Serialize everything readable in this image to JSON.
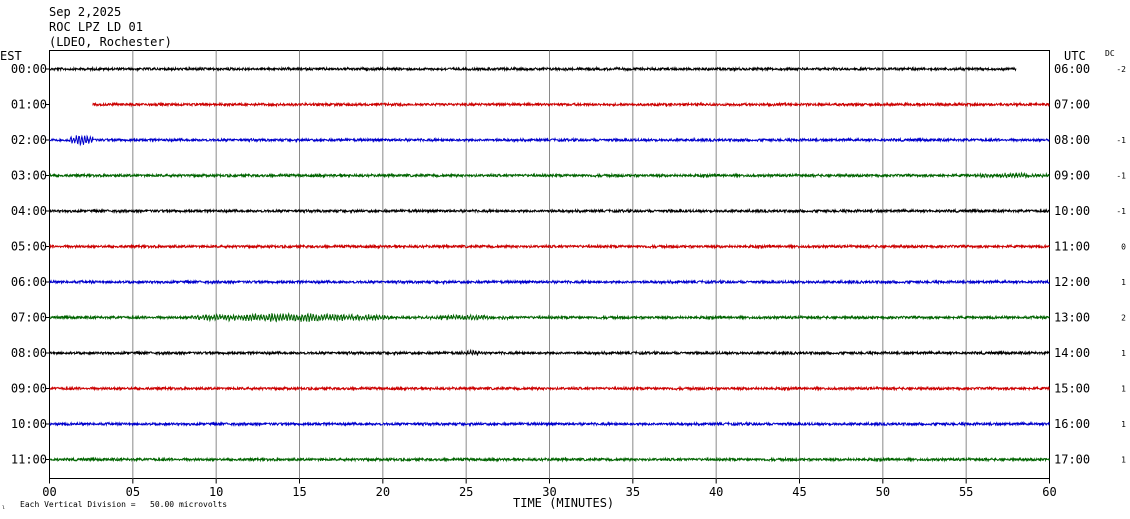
{
  "header": {
    "date": "Sep 2,2025",
    "station": "ROC LPZ LD 01",
    "network": "(LDEO, Rochester)"
  },
  "footer": {
    "scale_note": "Each Vertical Division =   50.00 microvolts",
    "corner_mark": "ₗ"
  },
  "chart_data": {
    "type": "line",
    "title": "",
    "xlabel": "TIME (MINUTES)",
    "ylabel_left": "EST",
    "ylabel_right": "UTC",
    "dc_label": "DC",
    "xlim": [
      0,
      60
    ],
    "x_ticks": [
      0,
      5,
      10,
      15,
      20,
      25,
      30,
      35,
      40,
      45,
      50,
      55,
      60
    ],
    "x_tick_labels": [
      "00",
      "05",
      "10",
      "15",
      "20",
      "25",
      "30",
      "35",
      "40",
      "45",
      "50",
      "55",
      "60"
    ],
    "grid": true,
    "colors": [
      "#000000",
      "#cc0000",
      "#0000cc",
      "#006400"
    ],
    "rows": [
      {
        "est": "00:00",
        "utc": "06:00",
        "dc": "-2",
        "start": 0,
        "end": 58,
        "bursts": []
      },
      {
        "est": "01:00",
        "utc": "07:00",
        "dc": "",
        "start": 2.6,
        "end": 60,
        "bursts": []
      },
      {
        "est": "02:00",
        "utc": "08:00",
        "dc": "-1",
        "start": 0,
        "end": 60,
        "bursts": [
          {
            "t0": 1.2,
            "t1": 2.6,
            "amp": 4.5
          }
        ]
      },
      {
        "est": "03:00",
        "utc": "09:00",
        "dc": "-1",
        "start": 0,
        "end": 60,
        "bursts": [
          {
            "t0": 55.5,
            "t1": 60,
            "amp": 1.4
          }
        ]
      },
      {
        "est": "04:00",
        "utc": "10:00",
        "dc": "-1",
        "start": 0,
        "end": 60,
        "bursts": []
      },
      {
        "est": "05:00",
        "utc": "11:00",
        "dc": "0",
        "start": 0,
        "end": 60,
        "bursts": []
      },
      {
        "est": "06:00",
        "utc": "12:00",
        "dc": "1",
        "start": 0,
        "end": 60,
        "bursts": []
      },
      {
        "est": "07:00",
        "utc": "13:00",
        "dc": "2",
        "start": 0,
        "end": 60,
        "bursts": [
          {
            "t0": 8.5,
            "t1": 20.5,
            "amp": 3.0
          },
          {
            "t0": 22.5,
            "t1": 27.5,
            "amp": 1.6
          }
        ]
      },
      {
        "est": "08:00",
        "utc": "14:00",
        "dc": "1",
        "start": 0,
        "end": 60,
        "bursts": [
          {
            "t0": 24.5,
            "t1": 26.5,
            "amp": 1.6
          }
        ]
      },
      {
        "est": "09:00",
        "utc": "15:00",
        "dc": "1",
        "start": 0,
        "end": 60,
        "bursts": []
      },
      {
        "est": "10:00",
        "utc": "16:00",
        "dc": "1",
        "start": 0,
        "end": 60,
        "bursts": []
      },
      {
        "est": "11:00",
        "utc": "17:00",
        "dc": "1",
        "start": 0,
        "end": 60,
        "bursts": []
      }
    ]
  }
}
